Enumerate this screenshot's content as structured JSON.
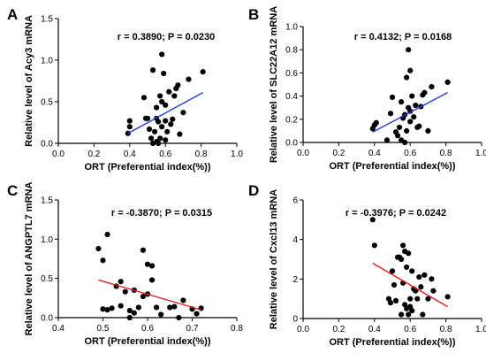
{
  "chart_data": [
    {
      "type": "scatter",
      "panel_label": "A",
      "annotation": "r = 0.3890; P = 0.0230",
      "xlabel": "ORT (Preferential index(%))",
      "ylabel": "Relative level of Acy3 mRNA",
      "xlim": [
        0.0,
        1.0
      ],
      "ylim": [
        0.0,
        1.5
      ],
      "xticks": [
        "0.0",
        "0.2",
        "0.4",
        "0.6",
        "0.8",
        "1.0"
      ],
      "yticks": [
        "0.0",
        "0.5",
        "1.0",
        "1.5"
      ],
      "xtick_values": [
        0.0,
        0.2,
        0.4,
        0.6,
        0.8,
        1.0
      ],
      "ytick_values": [
        0.0,
        0.5,
        1.0,
        1.5
      ],
      "fit_line": {
        "x": [
          0.39,
          0.81
        ],
        "y": [
          0.12,
          0.61
        ],
        "color": "#1f3fd6"
      },
      "points": {
        "x": [
          0.39,
          0.4,
          0.4,
          0.48,
          0.49,
          0.5,
          0.51,
          0.52,
          0.53,
          0.53,
          0.54,
          0.55,
          0.55,
          0.55,
          0.56,
          0.56,
          0.57,
          0.57,
          0.58,
          0.58,
          0.58,
          0.59,
          0.6,
          0.6,
          0.6,
          0.61,
          0.62,
          0.63,
          0.64,
          0.65,
          0.66,
          0.67,
          0.68,
          0.7,
          0.73,
          0.81
        ],
        "y": [
          0.12,
          0.2,
          0.27,
          0.55,
          0.3,
          0.3,
          0.17,
          0.06,
          0.0,
          0.88,
          0.14,
          0.02,
          0.3,
          0.43,
          0.26,
          0.0,
          0.57,
          0.06,
          0.5,
          1.07,
          0.2,
          0.84,
          0.46,
          0.04,
          0.27,
          0.14,
          0.62,
          0.23,
          0.29,
          0.57,
          0.66,
          0.7,
          0.11,
          0.37,
          0.77,
          0.86
        ]
      }
    },
    {
      "type": "scatter",
      "panel_label": "B",
      "annotation": "r = 0.4132; P = 0.0168",
      "xlabel": "ORT (Preferential index(%))",
      "ylabel": "Relative level of SLC22A12 mRNA",
      "xlim": [
        0.0,
        1.0
      ],
      "ylim": [
        0.0,
        1.0
      ],
      "xticks": [
        "0.0",
        "0.2",
        "0.4",
        "0.6",
        "0.8",
        "1.0"
      ],
      "yticks": [
        "0.0",
        "0.2",
        "0.4",
        "0.6",
        "0.8",
        "1.0"
      ],
      "xtick_values": [
        0.0,
        0.2,
        0.4,
        0.6,
        0.8,
        1.0
      ],
      "ytick_values": [
        0.0,
        0.2,
        0.4,
        0.6,
        0.8,
        1.0
      ],
      "fit_line": {
        "x": [
          0.39,
          0.81
        ],
        "y": [
          0.09,
          0.43
        ],
        "color": "#1f3fd6"
      },
      "points": {
        "x": [
          0.39,
          0.4,
          0.41,
          0.47,
          0.49,
          0.5,
          0.52,
          0.53,
          0.54,
          0.55,
          0.55,
          0.56,
          0.57,
          0.57,
          0.58,
          0.58,
          0.59,
          0.59,
          0.6,
          0.6,
          0.6,
          0.61,
          0.62,
          0.63,
          0.64,
          0.65,
          0.66,
          0.67,
          0.68,
          0.7,
          0.72,
          0.81
        ],
        "y": [
          0.12,
          0.15,
          0.17,
          0.02,
          0.25,
          0.39,
          0.09,
          0.06,
          0.13,
          0.35,
          0.02,
          0.21,
          0.24,
          0.0,
          0.1,
          0.56,
          0.8,
          0.3,
          0.18,
          0.62,
          0.27,
          0.4,
          0.22,
          0.32,
          0.13,
          0.14,
          0.31,
          0.41,
          0.43,
          0.1,
          0.48,
          0.52
        ]
      }
    },
    {
      "type": "scatter",
      "panel_label": "C",
      "annotation": "r = -0.3870; P = 0.0315",
      "xlabel": "ORT (Preferential index(%))",
      "ylabel": "Relative level of ANGPTL7 mRNA",
      "xlim": [
        0.4,
        0.8
      ],
      "ylim": [
        0.0,
        1.5
      ],
      "xticks": [
        "0.4",
        "0.5",
        "0.6",
        "0.7",
        "0.8"
      ],
      "yticks": [
        "0.0",
        "0.5",
        "1.0",
        "1.5"
      ],
      "xtick_values": [
        0.4,
        0.5,
        0.6,
        0.7,
        0.8
      ],
      "ytick_values": [
        0.0,
        0.5,
        1.0,
        1.5
      ],
      "fit_line": {
        "x": [
          0.49,
          0.72
        ],
        "y": [
          0.48,
          0.1
        ],
        "color": "#e02020"
      },
      "points": {
        "x": [
          0.49,
          0.5,
          0.5,
          0.51,
          0.51,
          0.52,
          0.53,
          0.54,
          0.54,
          0.55,
          0.56,
          0.56,
          0.57,
          0.57,
          0.58,
          0.59,
          0.59,
          0.6,
          0.6,
          0.61,
          0.61,
          0.62,
          0.63,
          0.65,
          0.66,
          0.67,
          0.68,
          0.7,
          0.71,
          0.72
        ],
        "y": [
          0.88,
          0.73,
          0.11,
          1.06,
          0.1,
          0.12,
          0.4,
          0.46,
          0.15,
          0.33,
          0.09,
          0.0,
          0.35,
          0.06,
          0.13,
          0.86,
          0.27,
          0.68,
          0.3,
          0.48,
          0.66,
          0.13,
          0.04,
          0.13,
          0.14,
          0.0,
          0.22,
          0.11,
          0.05,
          0.12
        ]
      }
    },
    {
      "type": "scatter",
      "panel_label": "D",
      "annotation": "r = -0.3976; P = 0.0242",
      "xlabel": "ORT (Preferential index(%))",
      "ylabel": "Relative level of Cxcl13 mRNA",
      "xlim": [
        0.0,
        1.0
      ],
      "ylim": [
        0,
        6
      ],
      "xticks": [
        "0.0",
        "0.2",
        "0.4",
        "0.6",
        "0.8",
        "1.0"
      ],
      "yticks": [
        "0",
        "2",
        "4",
        "6"
      ],
      "xtick_values": [
        0.0,
        0.2,
        0.4,
        0.6,
        0.8,
        1.0
      ],
      "ytick_values": [
        0,
        2,
        4,
        6
      ],
      "fit_line": {
        "x": [
          0.39,
          0.81
        ],
        "y": [
          2.8,
          0.6
        ],
        "color": "#e02020"
      },
      "points": {
        "x": [
          0.39,
          0.4,
          0.48,
          0.49,
          0.5,
          0.51,
          0.52,
          0.53,
          0.54,
          0.55,
          0.55,
          0.56,
          0.56,
          0.57,
          0.57,
          0.58,
          0.58,
          0.59,
          0.59,
          0.6,
          0.6,
          0.61,
          0.61,
          0.62,
          0.63,
          0.64,
          0.65,
          0.66,
          0.67,
          0.68,
          0.7,
          0.72,
          0.73,
          0.81
        ],
        "y": [
          5.0,
          3.7,
          1.0,
          0.8,
          2.4,
          1.7,
          0.9,
          3.1,
          3.1,
          3.0,
          0.2,
          3.7,
          1.8,
          3.4,
          0.7,
          2.6,
          0.5,
          3.3,
          0.2,
          1.0,
          0.6,
          2.4,
          0.4,
          1.5,
          1.4,
          1.0,
          2.1,
          1.6,
          0.2,
          2.2,
          1.0,
          2.0,
          1.4,
          1.1
        ]
      }
    }
  ]
}
